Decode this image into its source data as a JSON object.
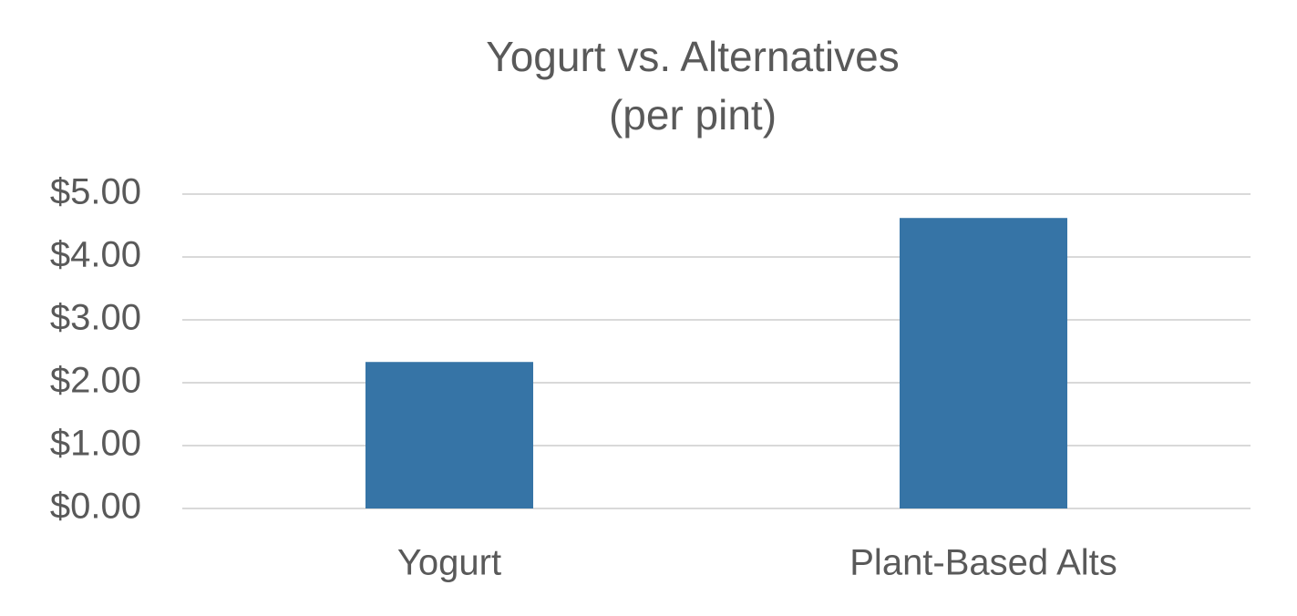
{
  "chart_data": {
    "type": "bar",
    "title": "Yogurt vs. Alternatives",
    "subtitle": "(per pint)",
    "categories": [
      "Yogurt",
      "Plant-Based Alts"
    ],
    "values": [
      2.33,
      4.62
    ],
    "color": "#3674a6",
    "ylim": [
      0,
      5
    ],
    "yticks": [
      {
        "value": 0,
        "label": "$0.00"
      },
      {
        "value": 1,
        "label": "$1.00"
      },
      {
        "value": 2,
        "label": "$2.00"
      },
      {
        "value": 3,
        "label": "$3.00"
      },
      {
        "value": 4,
        "label": "$4.00"
      },
      {
        "value": 5,
        "label": "$5.00"
      }
    ],
    "grid": true
  }
}
